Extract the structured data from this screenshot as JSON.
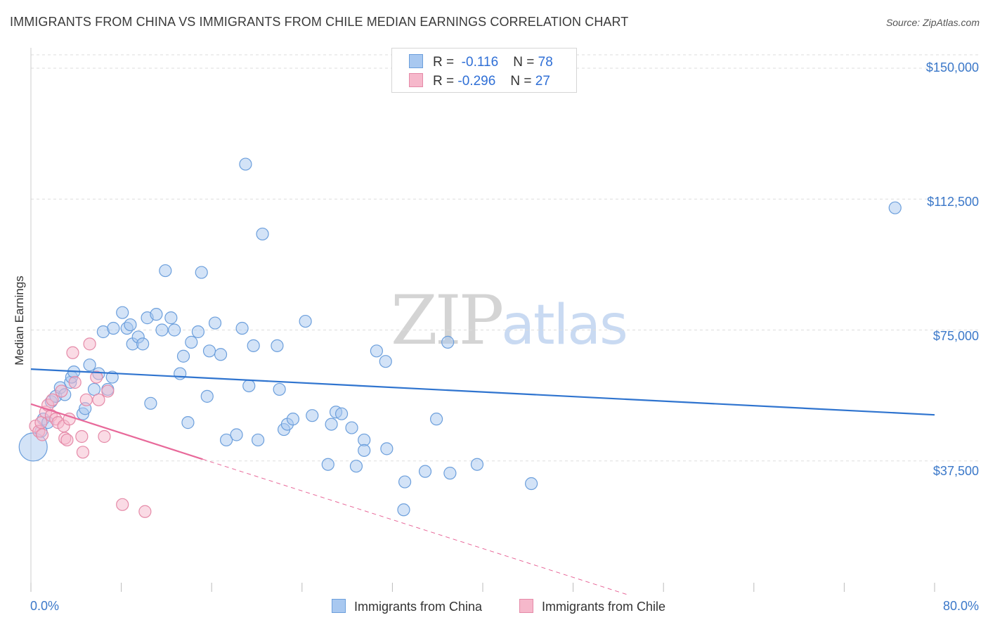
{
  "title": "IMMIGRANTS FROM CHINA VS IMMIGRANTS FROM CHILE MEDIAN EARNINGS CORRELATION CHART",
  "source": "Source: ZipAtlas.com",
  "watermark": {
    "zip": "ZIP",
    "atlas": "atlas"
  },
  "legend": {
    "china": {
      "r_label": "R =",
      "r_value": "-0.116",
      "n_label": "N =",
      "n_value": "78"
    },
    "chile": {
      "r_label": "R =",
      "r_value": "-0.296",
      "n_label": "N =",
      "n_value": "27"
    }
  },
  "colors": {
    "china_fill": "#a8c8f0",
    "china_stroke": "#6c9fdc",
    "china_line": "#2f74cf",
    "chile_fill": "#f6b8cb",
    "chile_stroke": "#e58aa8",
    "chile_line": "#e8699a",
    "grid": "#dddddd",
    "axis_text": "#3b78c9"
  },
  "chart_data": {
    "type": "scatter",
    "title": "IMMIGRANTS FROM CHINA VS IMMIGRANTS FROM CHILE MEDIAN EARNINGS CORRELATION CHART",
    "xlabel": "",
    "ylabel": "Median Earnings",
    "xlim": [
      0,
      80
    ],
    "ylim": [
      0,
      155000
    ],
    "x_tick_labels": [
      "0.0%",
      "80.0%"
    ],
    "y_ticks": [
      37500,
      75000,
      112500,
      150000
    ],
    "y_tick_labels": [
      "$37,500",
      "$75,000",
      "$112,500",
      "$150,000"
    ],
    "grid": "horizontal dashed",
    "legend_position": "top-center",
    "series": [
      {
        "name": "Immigrants from China",
        "points": [
          [
            0.2,
            41500
          ],
          [
            0.9,
            46000
          ],
          [
            1.1,
            49500
          ],
          [
            1.5,
            48500
          ],
          [
            1.8,
            54500
          ],
          [
            2.2,
            56000
          ],
          [
            2.6,
            58500
          ],
          [
            3.0,
            56500
          ],
          [
            3.5,
            60000
          ],
          [
            3.6,
            61500
          ],
          [
            3.8,
            63000
          ],
          [
            4.6,
            51000
          ],
          [
            4.8,
            52500
          ],
          [
            5.2,
            65000
          ],
          [
            5.6,
            58000
          ],
          [
            6.0,
            62500
          ],
          [
            6.4,
            74500
          ],
          [
            6.8,
            58000
          ],
          [
            7.2,
            61500
          ],
          [
            7.3,
            75500
          ],
          [
            8.1,
            80000
          ],
          [
            8.5,
            75500
          ],
          [
            8.8,
            76500
          ],
          [
            9.0,
            71000
          ],
          [
            9.5,
            73000
          ],
          [
            9.9,
            71000
          ],
          [
            10.3,
            78500
          ],
          [
            10.6,
            54000
          ],
          [
            11.1,
            79500
          ],
          [
            11.6,
            75000
          ],
          [
            11.9,
            92000
          ],
          [
            12.4,
            78500
          ],
          [
            12.7,
            75000
          ],
          [
            13.2,
            62500
          ],
          [
            13.5,
            67500
          ],
          [
            13.9,
            48500
          ],
          [
            14.2,
            71500
          ],
          [
            14.8,
            74500
          ],
          [
            15.1,
            91500
          ],
          [
            15.6,
            56000
          ],
          [
            15.8,
            69000
          ],
          [
            16.3,
            77000
          ],
          [
            16.8,
            68000
          ],
          [
            17.3,
            43500
          ],
          [
            18.2,
            45000
          ],
          [
            18.7,
            75500
          ],
          [
            19.0,
            122500
          ],
          [
            19.3,
            59000
          ],
          [
            19.7,
            70500
          ],
          [
            20.1,
            43500
          ],
          [
            20.5,
            102500
          ],
          [
            21.8,
            70500
          ],
          [
            22.0,
            58000
          ],
          [
            22.4,
            46500
          ],
          [
            22.7,
            48000
          ],
          [
            23.2,
            49500
          ],
          [
            24.3,
            77500
          ],
          [
            24.9,
            50500
          ],
          [
            26.3,
            36500
          ],
          [
            26.6,
            48000
          ],
          [
            27.0,
            51500
          ],
          [
            27.5,
            51000
          ],
          [
            28.4,
            47000
          ],
          [
            28.8,
            36000
          ],
          [
            29.5,
            43500
          ],
          [
            29.5,
            40500
          ],
          [
            30.6,
            69000
          ],
          [
            31.4,
            66000
          ],
          [
            31.5,
            41000
          ],
          [
            33.1,
            31500
          ],
          [
            34.9,
            34500
          ],
          [
            35.9,
            49500
          ],
          [
            36.9,
            71500
          ],
          [
            37.1,
            34000
          ],
          [
            39.5,
            36500
          ],
          [
            44.3,
            31000
          ],
          [
            76.5,
            110000
          ],
          [
            33.0,
            23500
          ]
        ]
      },
      {
        "name": "Immigrants from Chile",
        "points": [
          [
            0.4,
            47500
          ],
          [
            0.7,
            46000
          ],
          [
            0.9,
            48500
          ],
          [
            1.0,
            45000
          ],
          [
            1.3,
            51500
          ],
          [
            1.5,
            53500
          ],
          [
            1.8,
            50500
          ],
          [
            1.9,
            55000
          ],
          [
            2.2,
            49500
          ],
          [
            2.4,
            48500
          ],
          [
            2.7,
            57500
          ],
          [
            2.9,
            47500
          ],
          [
            3.0,
            44000
          ],
          [
            3.2,
            43500
          ],
          [
            3.4,
            49500
          ],
          [
            3.7,
            68500
          ],
          [
            3.9,
            60000
          ],
          [
            4.5,
            44500
          ],
          [
            4.6,
            40000
          ],
          [
            4.9,
            55000
          ],
          [
            5.2,
            71000
          ],
          [
            5.8,
            61500
          ],
          [
            6.0,
            55000
          ],
          [
            6.5,
            44500
          ],
          [
            6.8,
            57500
          ],
          [
            8.1,
            25000
          ],
          [
            10.1,
            23000
          ]
        ]
      }
    ],
    "trend_lines": [
      {
        "name": "Immigrants from China",
        "x": [
          0,
          80
        ],
        "y": [
          63800,
          50700
        ]
      },
      {
        "name": "Immigrants from Chile",
        "x": [
          0,
          15.2
        ],
        "y": [
          53800,
          38000
        ],
        "dashed_extension": {
          "x": [
            15.2,
            53
          ],
          "y": [
            38000,
            -1000
          ]
        }
      }
    ]
  }
}
